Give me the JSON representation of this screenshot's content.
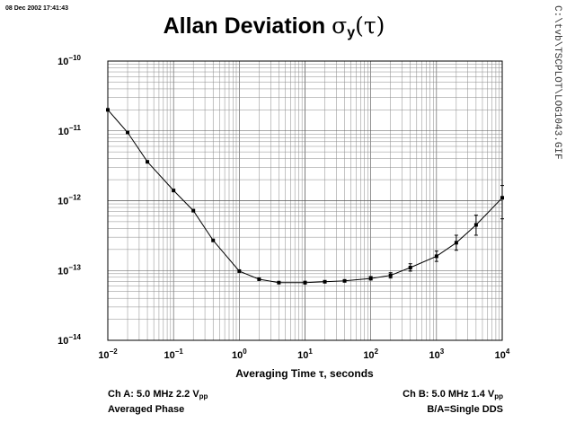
{
  "timestamp": "08 Dec 2002 17:41:43",
  "side_path": "C:\\tvb\\TSCPLOT\\LOG1043.GIF",
  "title": {
    "text": "Allan Deviation ",
    "sigma": "σ",
    "sub": "y",
    "tau": "(τ)"
  },
  "footer": {
    "left_line1_prefix": "Ch A: 5.0 MHz 2.2 V",
    "left_line1_sub": "pp",
    "left_line2": "Averaged Phase",
    "right_line1_prefix": "Ch B: 5.0 MHz 1.4 V",
    "right_line1_sub": "pp",
    "right_line2": "B/A=Single DDS"
  },
  "chart_data": {
    "type": "line",
    "title": "Allan Deviation σy(τ)",
    "xlabel": "Averaging Time τ, seconds",
    "ylabel": "",
    "x_scale": "log",
    "y_scale": "log",
    "xlim": [
      0.01,
      10000
    ],
    "ylim": [
      1e-14,
      1e-10
    ],
    "grid": true,
    "x_ticks": [
      {
        "mant": "10",
        "exp": "−2"
      },
      {
        "mant": "10",
        "exp": "−1"
      },
      {
        "mant": "10",
        "exp": "0"
      },
      {
        "mant": "10",
        "exp": "1"
      },
      {
        "mant": "10",
        "exp": "2"
      },
      {
        "mant": "10",
        "exp": "3"
      },
      {
        "mant": "10",
        "exp": "4"
      }
    ],
    "y_ticks": [
      {
        "mant": "10",
        "exp": "−14"
      },
      {
        "mant": "10",
        "exp": "−13"
      },
      {
        "mant": "10",
        "exp": "−12"
      },
      {
        "mant": "10",
        "exp": "−11"
      },
      {
        "mant": "10",
        "exp": "−10"
      }
    ],
    "series": [
      {
        "points": [
          {
            "x": 0.01,
            "y": 2e-11
          },
          {
            "x": 0.02,
            "y": 9.5e-12
          },
          {
            "x": 0.04,
            "y": 3.6e-12
          },
          {
            "x": 0.1,
            "y": 1.4e-12
          },
          {
            "x": 0.2,
            "y": 7.2e-13
          },
          {
            "x": 0.4,
            "y": 2.7e-13
          },
          {
            "x": 1,
            "y": 9.8e-14
          },
          {
            "x": 2,
            "y": 7.5e-14
          },
          {
            "x": 4,
            "y": 6.7e-14
          },
          {
            "x": 10,
            "y": 6.7e-14,
            "err_lo": 6.4e-14,
            "err_hi": 7e-14
          },
          {
            "x": 20,
            "y": 6.9e-14
          },
          {
            "x": 40,
            "y": 7.1e-14
          },
          {
            "x": 100,
            "y": 7.7e-14,
            "err_lo": 7.3e-14,
            "err_hi": 8.2e-14
          },
          {
            "x": 200,
            "y": 8.5e-14,
            "err_lo": 7.8e-14,
            "err_hi": 9.3e-14
          },
          {
            "x": 400,
            "y": 1.1e-13,
            "err_lo": 9.8e-14,
            "err_hi": 1.25e-13
          },
          {
            "x": 1000,
            "y": 1.6e-13,
            "err_lo": 1.35e-13,
            "err_hi": 1.9e-13
          },
          {
            "x": 2000,
            "y": 2.5e-13,
            "err_lo": 1.95e-13,
            "err_hi": 3.2e-13
          },
          {
            "x": 4000,
            "y": 4.5e-13,
            "err_lo": 3.2e-13,
            "err_hi": 6.2e-13
          },
          {
            "x": 10000,
            "y": 1.1e-12,
            "err_lo": 5.5e-13,
            "err_hi": 1.65e-12
          }
        ]
      }
    ]
  }
}
